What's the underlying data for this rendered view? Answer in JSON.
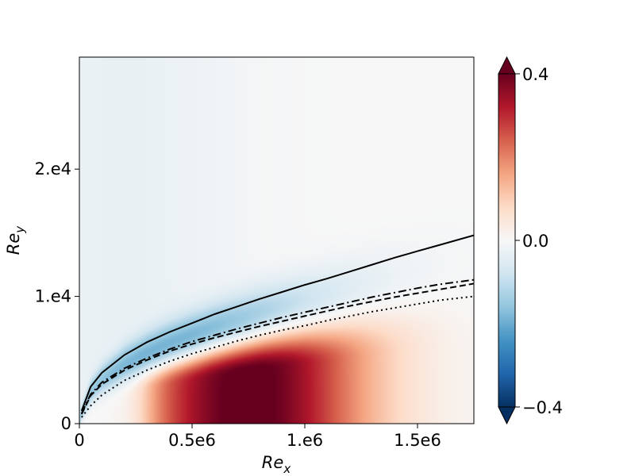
{
  "chart_data": {
    "type": "heatmap",
    "title": "",
    "xlabel": "Re",
    "xlabel_sub": "x",
    "ylabel": "Re",
    "ylabel_sub": "y",
    "xlim": [
      0,
      1750000
    ],
    "ylim": [
      0,
      28800
    ],
    "x_ticks": [
      {
        "value": 0,
        "label": "0"
      },
      {
        "value": 500000,
        "label": "0.5e6"
      },
      {
        "value": 1000000,
        "label": "1.e6"
      },
      {
        "value": 1500000,
        "label": "1.5e6"
      }
    ],
    "y_ticks": [
      {
        "value": 0,
        "label": "0"
      },
      {
        "value": 10000,
        "label": "1.e4"
      },
      {
        "value": 20000,
        "label": "2.e4"
      }
    ],
    "colorbar": {
      "colormap": "RdBu_r",
      "min": -0.4,
      "max": 0.4,
      "extend": "both",
      "ticks": [
        {
          "value": 0.4,
          "label": "0.4"
        },
        {
          "value": 0.0,
          "label": "0.0"
        },
        {
          "value": -0.4,
          "label": "−0.4"
        }
      ]
    },
    "field": {
      "description": "positive lobe near wall, negative band along boundary-layer edge",
      "positive_peak": {
        "x": 750000,
        "y": 800,
        "value": 0.4
      },
      "negative_band_peak_value": -0.2
    },
    "series": [
      {
        "style": "solid",
        "x": [
          10000,
          50000,
          100000,
          200000,
          300000,
          400000,
          500000,
          600000,
          700000,
          800000,
          900000,
          1000000,
          1100000,
          1200000,
          1300000,
          1400000,
          1500000,
          1600000,
          1750000
        ],
        "y": [
          1000,
          2900,
          4000,
          5400,
          6400,
          7200,
          7900,
          8600,
          9200,
          9800,
          10350,
          10900,
          11400,
          11950,
          12500,
          13050,
          13550,
          14050,
          14800
        ]
      },
      {
        "style": "dashdot",
        "x": [
          10000,
          50000,
          100000,
          200000,
          300000,
          400000,
          500000,
          600000,
          700000,
          800000,
          900000,
          1000000,
          1100000,
          1200000,
          1300000,
          1400000,
          1500000,
          1600000,
          1750000
        ],
        "y": [
          800,
          2300,
          3250,
          4350,
          5150,
          5850,
          6450,
          6950,
          7450,
          7900,
          8350,
          8750,
          9150,
          9550,
          9950,
          10300,
          10650,
          10950,
          11300
        ]
      },
      {
        "style": "dashed",
        "x": [
          10000,
          50000,
          100000,
          200000,
          300000,
          400000,
          500000,
          600000,
          700000,
          800000,
          900000,
          1000000,
          1100000,
          1200000,
          1300000,
          1400000,
          1500000,
          1600000,
          1750000
        ],
        "y": [
          750,
          2200,
          3100,
          4200,
          5000,
          5700,
          6250,
          6750,
          7200,
          7650,
          8050,
          8450,
          8850,
          9250,
          9600,
          9950,
          10250,
          10550,
          11000
        ]
      },
      {
        "style": "dotted",
        "x": [
          10000,
          50000,
          100000,
          200000,
          300000,
          400000,
          500000,
          600000,
          700000,
          800000,
          900000,
          1000000,
          1100000,
          1200000,
          1300000,
          1400000,
          1500000,
          1600000,
          1750000
        ],
        "y": [
          500,
          1400,
          2250,
          3400,
          4200,
          4900,
          5500,
          6000,
          6500,
          6950,
          7350,
          7700,
          8100,
          8450,
          8800,
          9100,
          9400,
          9700,
          10000
        ]
      }
    ]
  }
}
